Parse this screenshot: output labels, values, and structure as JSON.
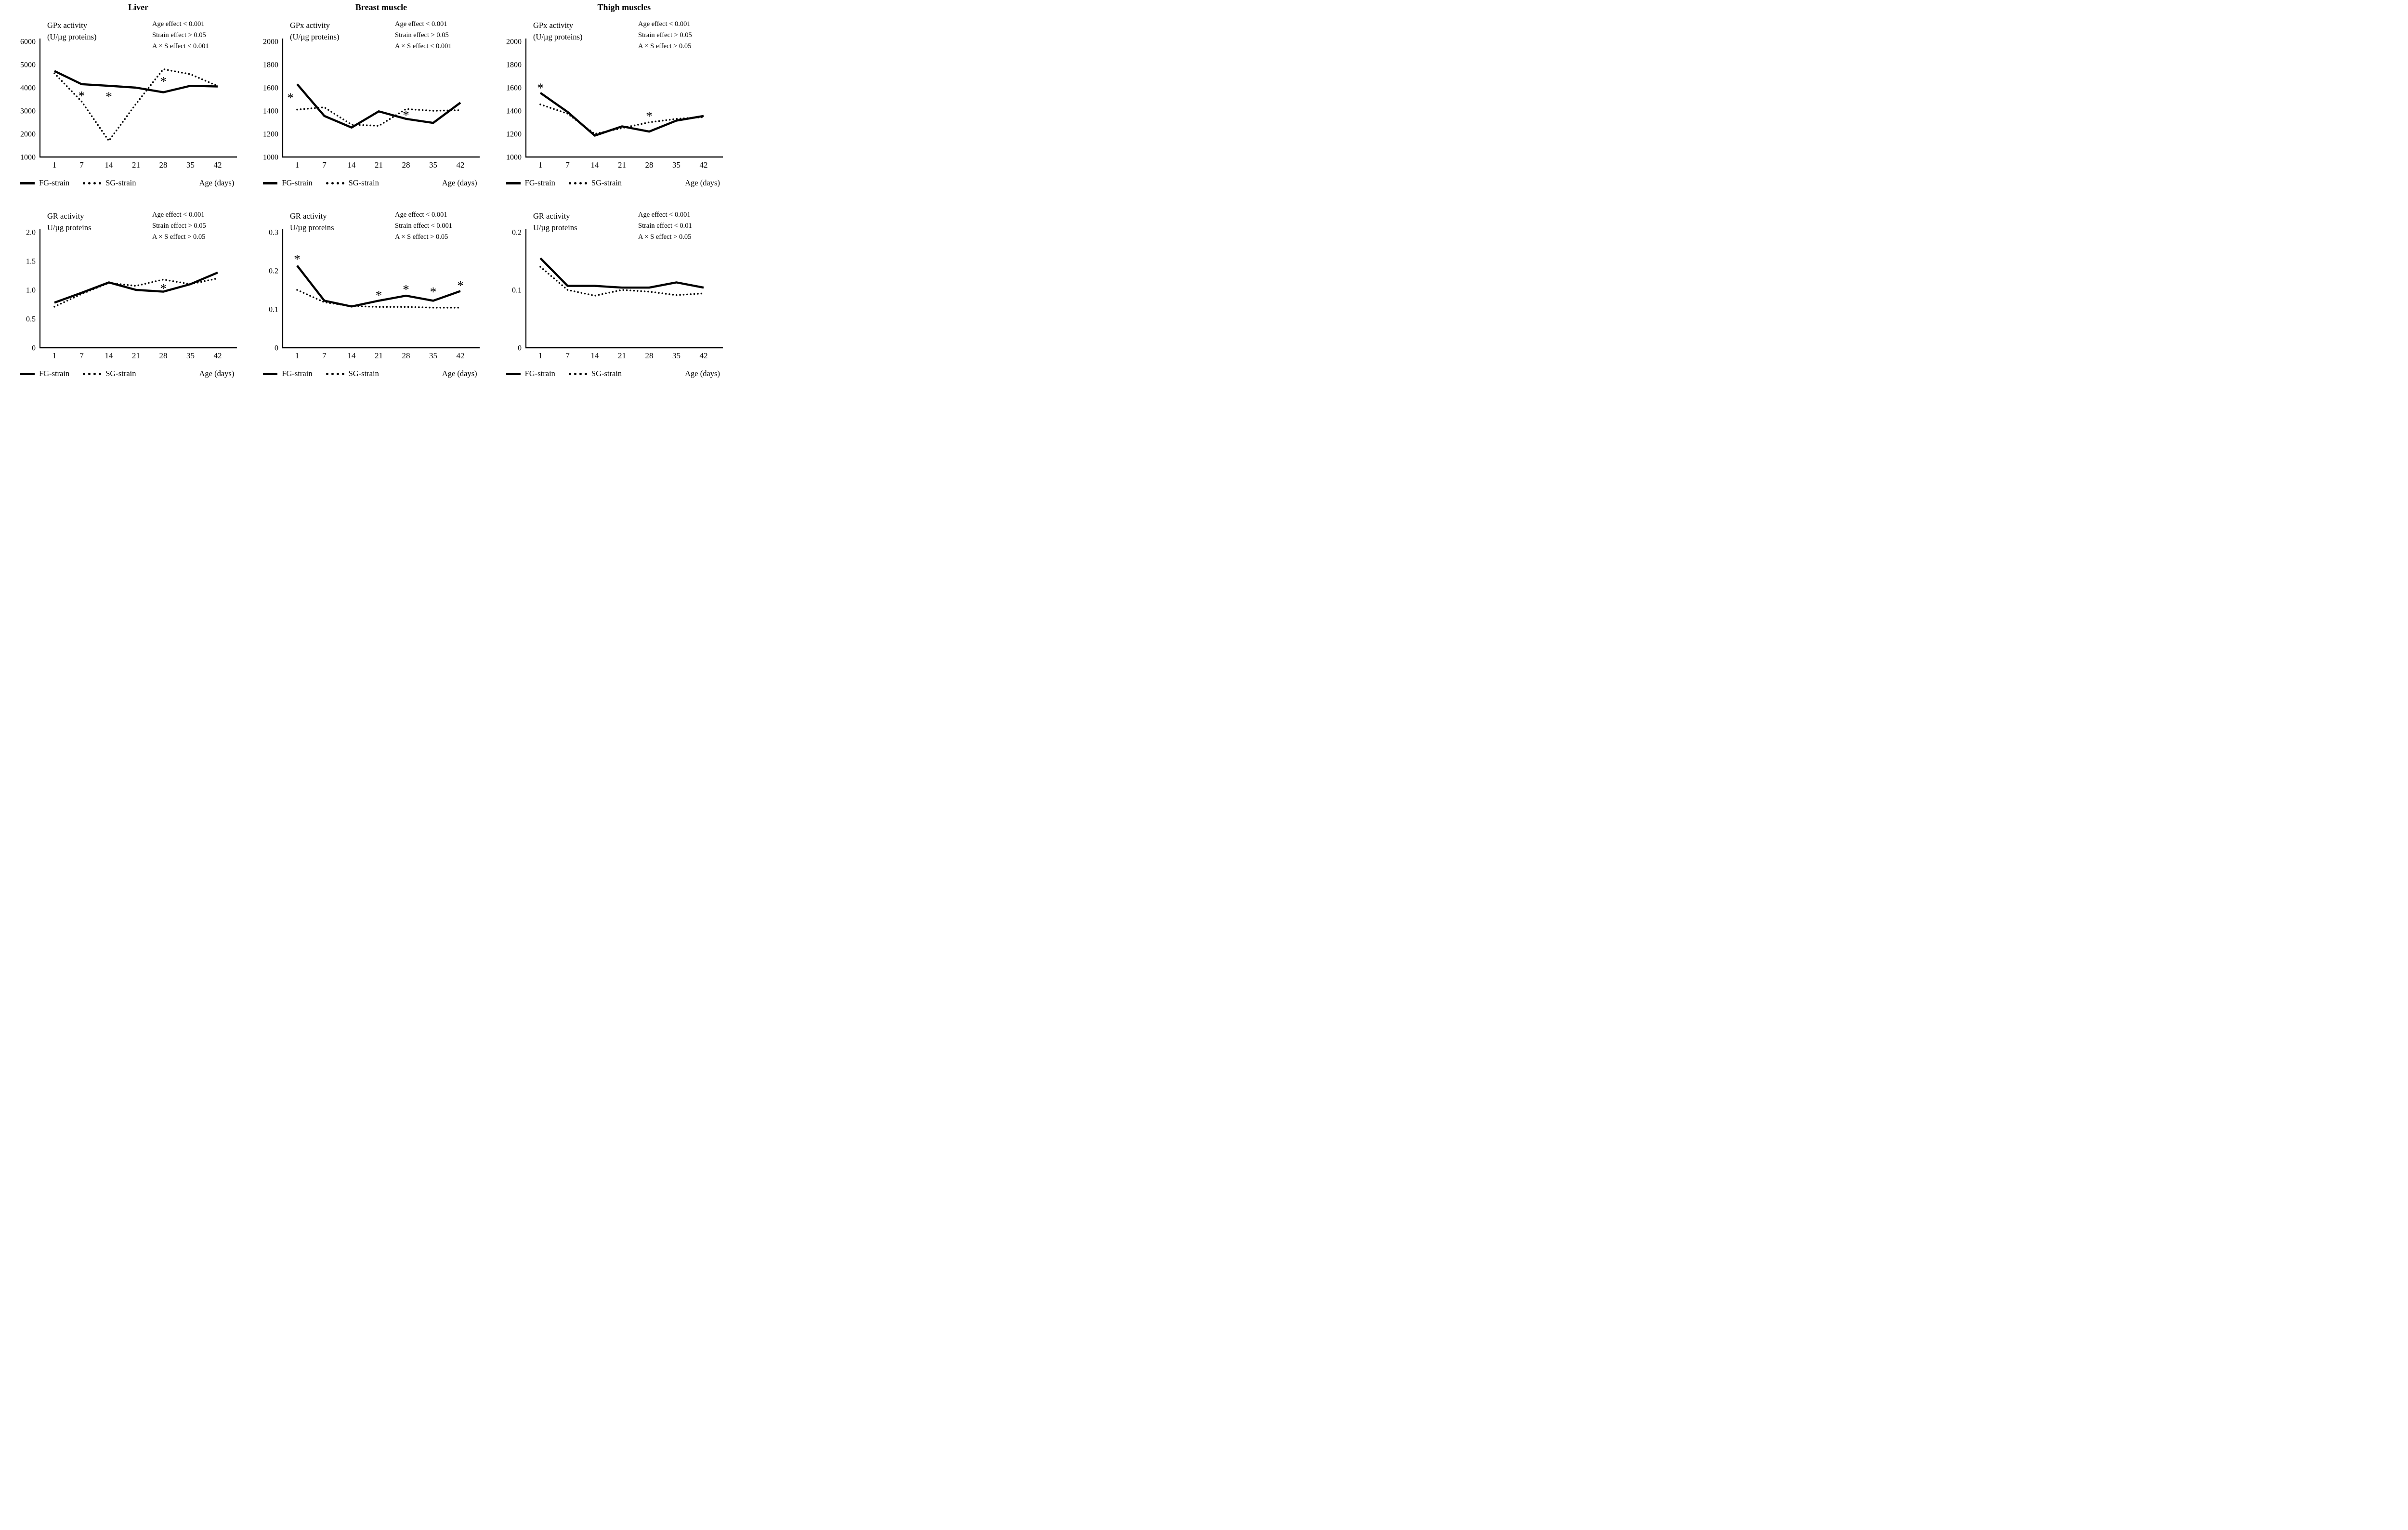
{
  "figure": {
    "background": "#ffffff",
    "line_color": "#000000",
    "columns": [
      {
        "title": "Liver"
      },
      {
        "title": "Breast muscle"
      },
      {
        "title": "Thigh muscles"
      }
    ],
    "legend": {
      "fg_label": "FG-strain",
      "sg_label": "SG-strain",
      "x_axis_label": "Age (days)"
    }
  },
  "chart_data": [
    {
      "id": "liver_gpx",
      "type": "line",
      "tissue": "Liver",
      "measure": "GPx",
      "ylabel_lines": [
        "GPx activity",
        "(U/µg proteins)"
      ],
      "annotations": [
        "Age effect < 0.001",
        "Strain effect > 0.05",
        "A × S effect < 0.001"
      ],
      "xlabel": "Age (days)",
      "x": [
        1,
        7,
        14,
        21,
        28,
        35,
        42
      ],
      "ylim": [
        1000,
        6000
      ],
      "yticks": [
        1000,
        2000,
        3000,
        4000,
        5000,
        6000
      ],
      "ytick_labels": [
        "1000",
        "2000",
        "3000",
        "4000",
        "5000",
        "6000"
      ],
      "grid": false,
      "legend_position": "below",
      "series": [
        {
          "name": "FG-strain",
          "style": "solid",
          "values": [
            4720,
            4150,
            4080,
            4000,
            3800,
            4080,
            4050
          ]
        },
        {
          "name": "SG-strain",
          "style": "dotted",
          "values": [
            4620,
            3400,
            1700,
            3300,
            4800,
            4580,
            4070
          ]
        }
      ],
      "asterisks": [
        {
          "day": 7,
          "value": 3730
        },
        {
          "day": 14,
          "value": 3700
        },
        {
          "day": 28,
          "value": 4350
        }
      ]
    },
    {
      "id": "breast_gpx",
      "type": "line",
      "tissue": "Breast muscle",
      "measure": "GPx",
      "ylabel_lines": [
        "GPx activity",
        "(U/µg proteins)"
      ],
      "annotations": [
        "Age effect < 0.001",
        "Strain effect > 0.05",
        "A × S effect < 0.001"
      ],
      "xlabel": "Age (days)",
      "x": [
        1,
        7,
        14,
        21,
        28,
        35,
        42
      ],
      "ylim": [
        1000,
        2000
      ],
      "yticks": [
        1000,
        1200,
        1400,
        1600,
        1800,
        2000
      ],
      "ytick_labels": [
        "1000",
        "1200",
        "1400",
        "1600",
        "1800",
        "2000"
      ],
      "grid": false,
      "legend_position": "below",
      "series": [
        {
          "name": "FG-strain",
          "style": "solid",
          "values": [
            1630,
            1355,
            1255,
            1395,
            1330,
            1295,
            1470
          ]
        },
        {
          "name": "SG-strain",
          "style": "dotted",
          "values": [
            1410,
            1430,
            1280,
            1270,
            1415,
            1400,
            1405
          ]
        }
      ],
      "asterisks": [
        {
          "day": 1,
          "value": 1530,
          "dx": -14
        },
        {
          "day": 28,
          "value": 1380
        }
      ]
    },
    {
      "id": "thigh_gpx",
      "type": "line",
      "tissue": "Thigh muscles",
      "measure": "GPx",
      "ylabel_lines": [
        "GPx activity",
        "(U/µg proteins)"
      ],
      "annotations": [
        "Age effect < 0.001",
        "Strain effect > 0.05",
        "A × S effect > 0.05"
      ],
      "xlabel": "Age (days)",
      "x": [
        1,
        7,
        14,
        21,
        28,
        35,
        42
      ],
      "ylim": [
        1000,
        2000
      ],
      "yticks": [
        1000,
        1200,
        1400,
        1600,
        1800,
        2000
      ],
      "ytick_labels": [
        "1000",
        "1200",
        "1400",
        "1600",
        "1800",
        "2000"
      ],
      "grid": false,
      "legend_position": "below",
      "series": [
        {
          "name": "FG-strain",
          "style": "solid",
          "values": [
            1555,
            1390,
            1185,
            1265,
            1220,
            1315,
            1355
          ]
        },
        {
          "name": "SG-strain",
          "style": "dotted",
          "values": [
            1455,
            1375,
            1200,
            1250,
            1300,
            1330,
            1345
          ]
        }
      ],
      "asterisks": [
        {
          "day": 1,
          "value": 1615
        },
        {
          "day": 28,
          "value": 1370
        }
      ]
    },
    {
      "id": "liver_gr",
      "type": "line",
      "tissue": "Liver",
      "measure": "GR",
      "ylabel_lines": [
        "GR activity",
        "U/µg proteins"
      ],
      "annotations": [
        "Age effect < 0.001",
        "Strain effect > 0.05",
        "A × S effect > 0.05"
      ],
      "xlabel": "Age (days)",
      "x": [
        1,
        7,
        14,
        21,
        28,
        35,
        42
      ],
      "ylim": [
        0,
        2.0
      ],
      "yticks": [
        0,
        0.5,
        1.0,
        1.5,
        2.0
      ],
      "ytick_labels": [
        "0",
        "0.5",
        "1.0",
        "1.5",
        "2.0"
      ],
      "grid": false,
      "legend_position": "below",
      "series": [
        {
          "name": "FG-strain",
          "style": "solid",
          "values": [
            0.78,
            0.95,
            1.13,
            1.0,
            0.97,
            1.1,
            1.3
          ]
        },
        {
          "name": "SG-strain",
          "style": "dotted",
          "values": [
            0.71,
            0.93,
            1.12,
            1.07,
            1.18,
            1.1,
            1.2
          ]
        }
      ],
      "asterisks": [
        {
          "day": 28,
          "value": 1.06
        }
      ]
    },
    {
      "id": "breast_gr",
      "type": "line",
      "tissue": "Breast muscle",
      "measure": "GR",
      "ylabel_lines": [
        "GR activity",
        "U/µg proteins"
      ],
      "annotations": [
        "Age effect < 0.001",
        "Strain effect < 0.001",
        "A × S effect > 0.05"
      ],
      "xlabel": "Age (days)",
      "x": [
        1,
        7,
        14,
        21,
        28,
        35,
        42
      ],
      "ylim": [
        0,
        0.3
      ],
      "yticks": [
        0,
        0.1,
        0.2,
        0.3
      ],
      "ytick_labels": [
        "0",
        "0.1",
        "0.2",
        "0.3"
      ],
      "grid": false,
      "legend_position": "below",
      "series": [
        {
          "name": "FG-strain",
          "style": "solid",
          "values": [
            0.213,
            0.122,
            0.107,
            0.122,
            0.135,
            0.122,
            0.147
          ]
        },
        {
          "name": "SG-strain",
          "style": "dotted",
          "values": [
            0.15,
            0.118,
            0.108,
            0.106,
            0.106,
            0.104,
            0.104
          ]
        }
      ],
      "asterisks": [
        {
          "day": 1,
          "value": 0.235
        },
        {
          "day": 21,
          "value": 0.141
        },
        {
          "day": 28,
          "value": 0.156
        },
        {
          "day": 35,
          "value": 0.15
        },
        {
          "day": 42,
          "value": 0.166
        }
      ]
    },
    {
      "id": "thigh_gr",
      "type": "line",
      "tissue": "Thigh muscles",
      "measure": "GR",
      "ylabel_lines": [
        "GR activity",
        "U/µg proteins"
      ],
      "annotations": [
        "Age effect < 0.001",
        "Strain effect < 0.01",
        "A × S effect > 0.05"
      ],
      "xlabel": "Age (days)",
      "x": [
        1,
        7,
        14,
        21,
        28,
        35,
        42
      ],
      "ylim": [
        0,
        0.2
      ],
      "yticks": [
        0,
        0.1,
        0.2
      ],
      "ytick_labels": [
        "0",
        "0.1",
        "0.2"
      ],
      "grid": false,
      "legend_position": "below",
      "series": [
        {
          "name": "FG-strain",
          "style": "solid",
          "values": [
            0.155,
            0.107,
            0.107,
            0.104,
            0.104,
            0.113,
            0.104
          ]
        },
        {
          "name": "SG-strain",
          "style": "dotted",
          "values": [
            0.14,
            0.1,
            0.09,
            0.1,
            0.097,
            0.091,
            0.094
          ]
        }
      ],
      "asterisks": []
    }
  ]
}
